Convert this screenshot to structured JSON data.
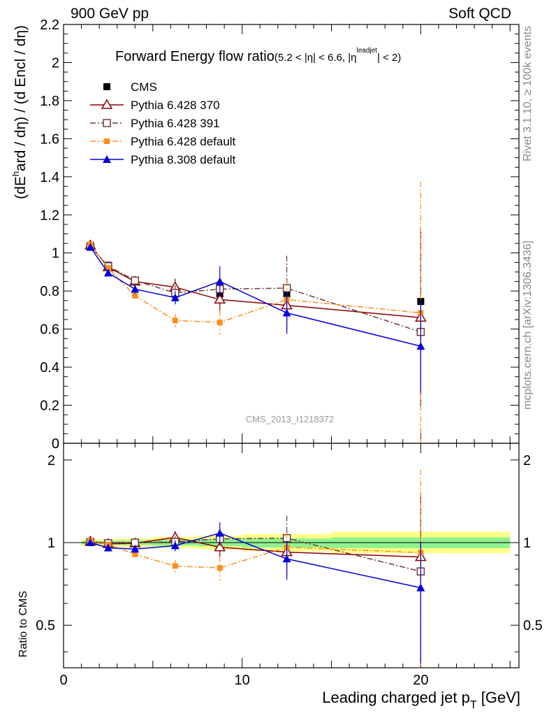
{
  "header": {
    "left": "900 GeV pp",
    "right": "Soft QCD"
  },
  "side_labels": {
    "rivet": "Rivet 3.1.10, ≥ 100k events",
    "mcplots": "mcplots.cern.ch [arXiv:1306.3436]"
  },
  "chart_data": {
    "type": "line",
    "title_main": "Forward Energy flow ratio",
    "title_cut": "(5.2 < |η| < 6.6, |η",
    "title_sup": "leadjet",
    "title_end": "| < 2)",
    "ylabel_main": "(dE",
    "ylabel_sup": "h",
    "ylabel_rest": "ard / dη) / (d Encl / dη)",
    "ratio_ylabel": "Ratio to CMS",
    "xlabel_main": "Leading charged jet p",
    "xlabel_sub": "T",
    "xlabel_unit": " [GeV]",
    "watermark": "CMS_2013_I1218372",
    "xlim": [
      0,
      25.5
    ],
    "ylim": [
      0,
      2.2
    ],
    "ratio_ylim": [
      0.35,
      2.3
    ],
    "x_ticks": [
      "0",
      "10",
      "20"
    ],
    "y_ticks": [
      "0",
      "0.2",
      "0.4",
      "0.6",
      "0.8",
      "1",
      "1.2",
      "1.4",
      "1.6",
      "1.8",
      "2",
      "2.2"
    ],
    "ratio_ticks": [
      "0.5",
      "1",
      "2"
    ],
    "x": [
      1.5,
      2.5,
      4.0,
      6.25,
      8.75,
      12.5,
      20.0
    ],
    "series": [
      {
        "name": "CMS",
        "color": "#000000",
        "values": [
          1.03,
          0.935,
          0.855,
          0.785,
          0.785,
          0.785,
          0.745
        ],
        "errors": [
          0.015,
          0.015,
          0.015,
          0.02,
          0.02,
          0.02,
          0.02
        ]
      },
      {
        "name": "Pythia 6.428 370",
        "color": "#8b0000",
        "values": [
          1.04,
          0.925,
          0.85,
          0.82,
          0.755,
          0.725,
          0.66
        ],
        "errors": [
          0.015,
          0.02,
          0.02,
          0.045,
          0.06,
          0.13,
          0.47
        ]
      },
      {
        "name": "Pythia 6.428 391",
        "color": "#6e3a3a",
        "values": [
          1.035,
          0.93,
          0.855,
          0.79,
          0.81,
          0.815,
          0.585
        ],
        "errors": [
          0.015,
          0.02,
          0.025,
          0.04,
          0.05,
          0.17,
          0.39
        ]
      },
      {
        "name": "Pythia 6.428 default",
        "color": "#ff8c1a",
        "values": [
          1.045,
          0.92,
          0.775,
          0.645,
          0.635,
          0.755,
          0.685
        ],
        "errors": [
          0.015,
          0.02,
          0.02,
          0.035,
          0.065,
          0.1,
          0.69
        ]
      },
      {
        "name": "Pythia 8.308 default",
        "color": "#0000dd",
        "values": [
          1.03,
          0.895,
          0.81,
          0.765,
          0.85,
          0.685,
          0.51
        ],
        "errors": [
          0.015,
          0.015,
          0.025,
          0.035,
          0.08,
          0.11,
          0.24
        ]
      }
    ],
    "legend_placement": "top-left",
    "ratio_bands": [
      {
        "x0": 1.0,
        "x1": 2.0,
        "green": [
          0.985,
          1.015
        ],
        "yellow": [
          0.97,
          1.03
        ]
      },
      {
        "x0": 2.0,
        "x1": 3.0,
        "green": [
          0.985,
          1.015
        ],
        "yellow": [
          0.97,
          1.03
        ]
      },
      {
        "x0": 3.0,
        "x1": 5.0,
        "green": [
          0.98,
          1.02
        ],
        "yellow": [
          0.965,
          1.035
        ]
      },
      {
        "x0": 5.0,
        "x1": 7.5,
        "green": [
          0.975,
          1.025
        ],
        "yellow": [
          0.955,
          1.05
        ]
      },
      {
        "x0": 7.5,
        "x1": 10.0,
        "green": [
          0.97,
          1.03
        ],
        "yellow": [
          0.945,
          1.06
        ]
      },
      {
        "x0": 10.0,
        "x1": 15.0,
        "green": [
          0.96,
          1.035
        ],
        "yellow": [
          0.93,
          1.075
        ]
      },
      {
        "x0": 15.0,
        "x1": 25.0,
        "green": [
          0.955,
          1.045
        ],
        "yellow": [
          0.915,
          1.095
        ]
      }
    ]
  }
}
